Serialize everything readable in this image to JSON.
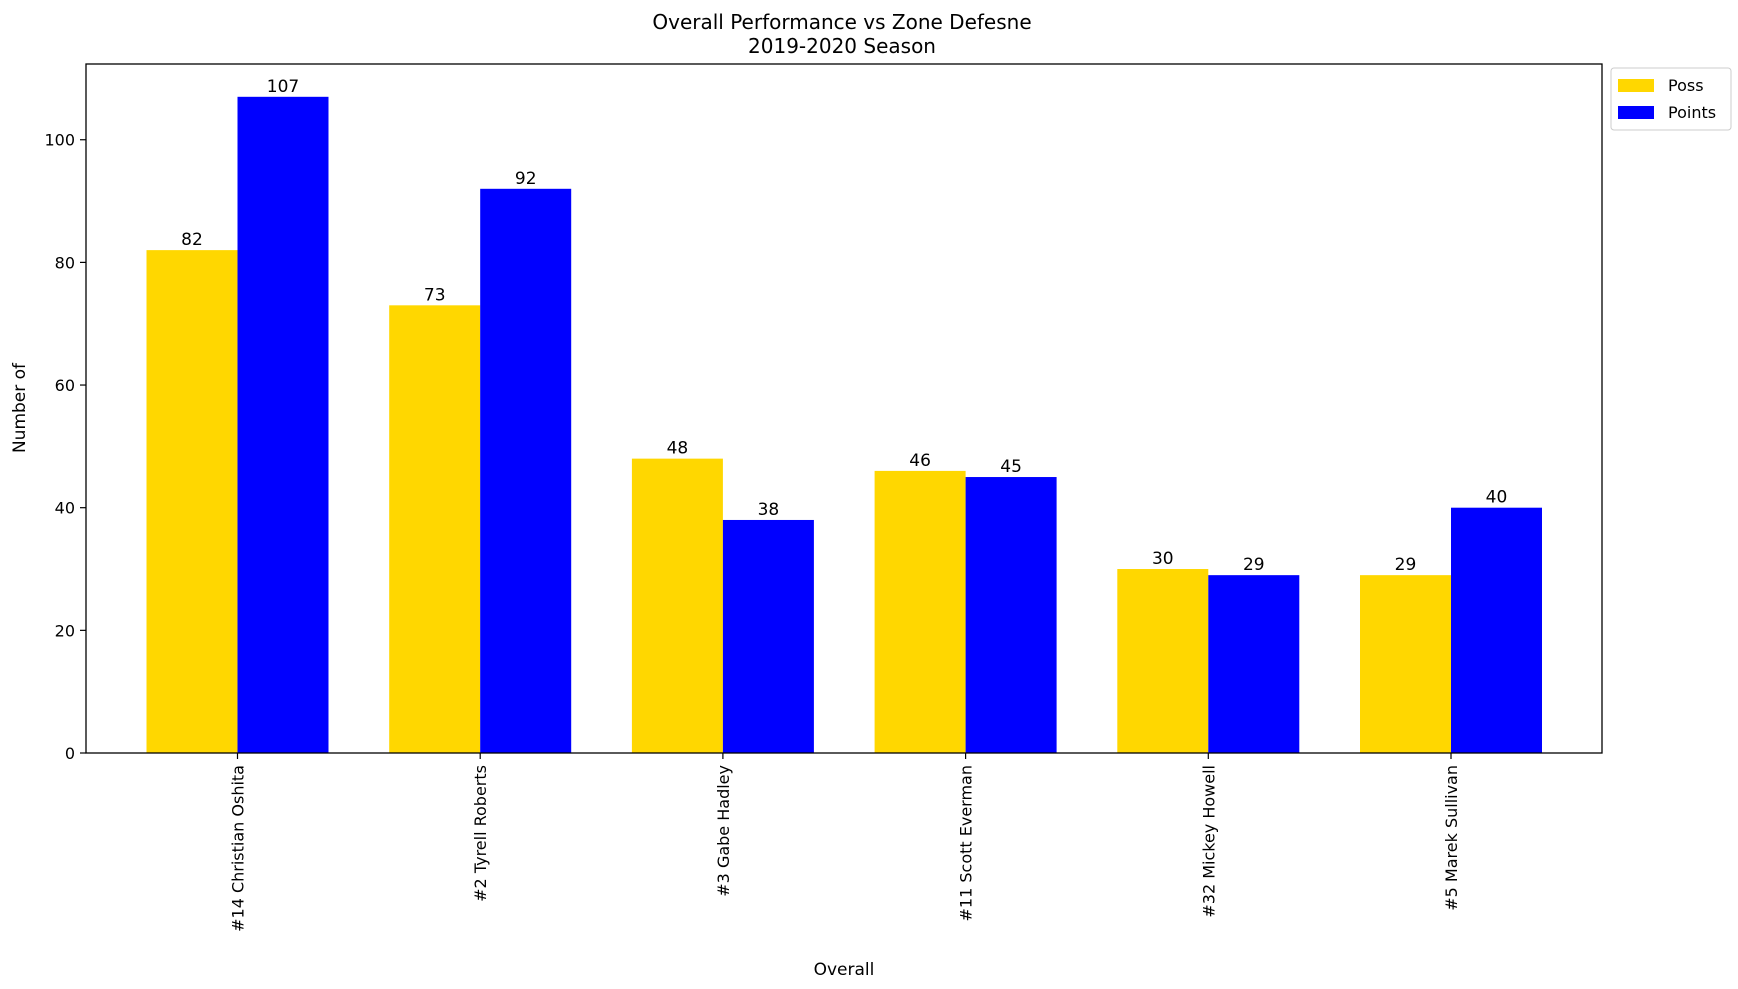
{
  "chart_data": {
    "type": "bar",
    "title": "Overall Performance vs Zone Defesne",
    "subtitle": "2019-2020 Season",
    "xlabel": "Overall",
    "ylabel": "Number of",
    "categories": [
      "#14 Christian Oshita",
      "#2 Tyrell Roberts",
      "#3 Gabe Hadley",
      "#11 Scott Everman",
      "#32 Mickey Howell",
      "#5 Marek Sullivan"
    ],
    "series": [
      {
        "name": "Poss",
        "color": "#FFD700",
        "values": [
          82,
          73,
          48,
          46,
          30,
          29
        ]
      },
      {
        "name": "Points",
        "color": "#0000FF",
        "values": [
          107,
          92,
          38,
          45,
          29,
          40
        ]
      }
    ],
    "ylim": [
      0,
      112.35
    ],
    "yticks": [
      0,
      20,
      40,
      60,
      80,
      100
    ],
    "grid": false,
    "legend_position": "outside-top-right"
  }
}
